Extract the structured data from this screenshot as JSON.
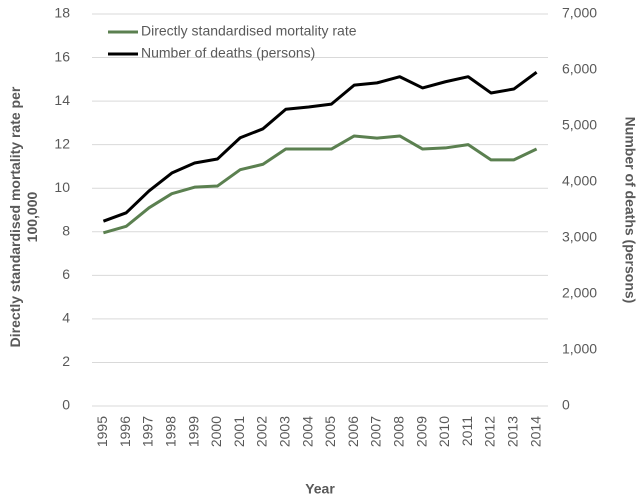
{
  "chart_data": {
    "type": "line",
    "x_label": "Year",
    "y_label": "Directly standardised mortality rate per 100,000",
    "y2_label": "Number of deaths (persons)",
    "categories": [
      "1995",
      "1996",
      "1997",
      "1998",
      "1999",
      "2000",
      "2001",
      "2002",
      "2003",
      "2004",
      "2005",
      "2006",
      "2007",
      "2008",
      "2009",
      "2010",
      "2011",
      "2012",
      "2013",
      "2014"
    ],
    "series": [
      {
        "name": "Directly standardised mortality rate",
        "color": "#5b8050",
        "values": [
          7.95,
          8.25,
          9.1,
          9.75,
          10.05,
          10.1,
          10.85,
          11.1,
          11.8,
          11.8,
          11.8,
          12.4,
          12.3,
          12.4,
          11.8,
          11.85,
          12.0,
          11.3,
          11.3,
          11.8
        ]
      },
      {
        "name": "Number of deaths (persons)",
        "color": "#000000",
        "axis": "y2",
        "values": [
          3300,
          3450,
          3840,
          4160,
          4340,
          4410,
          4790,
          4950,
          5300,
          5340,
          5390,
          5730,
          5770,
          5880,
          5680,
          5790,
          5880,
          5590,
          5660,
          5960
        ]
      }
    ],
    "ylim": [
      0,
      18
    ],
    "yticks": [
      0,
      2,
      4,
      6,
      8,
      10,
      12,
      14,
      16,
      18
    ],
    "y2lim": [
      0,
      7000
    ],
    "y2ticks": [
      0,
      {
        "value": 1000,
        "label": "1,000"
      },
      {
        "value": 2000,
        "label": "2,000"
      },
      {
        "value": 3000,
        "label": "3,000"
      },
      {
        "value": 4000,
        "label": "4,000"
      },
      {
        "value": 5000,
        "label": "5,000"
      },
      {
        "value": 6000,
        "label": "6,000"
      },
      {
        "value": 7000,
        "label": "7,000"
      }
    ],
    "grid": true,
    "legend": "top-left"
  }
}
